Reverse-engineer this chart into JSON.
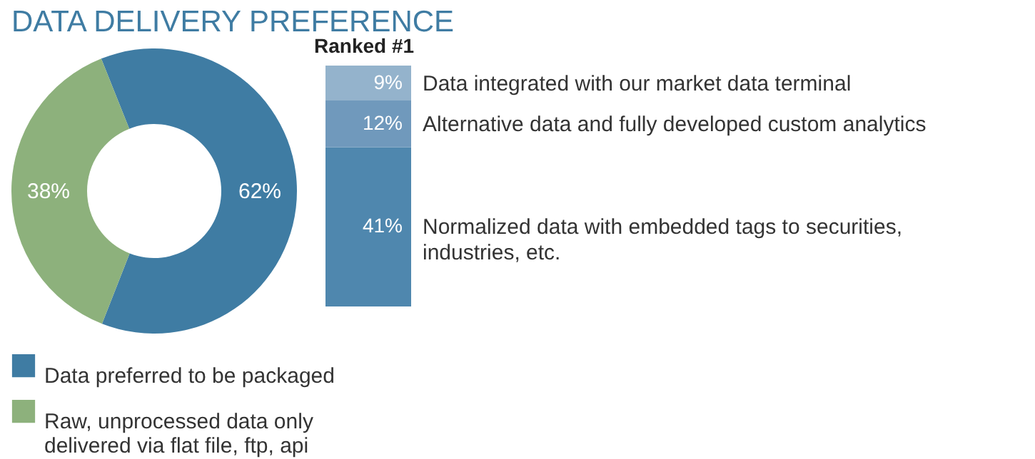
{
  "chart_data": [
    {
      "type": "donut",
      "title": "DATA DELIVERY PREFERENCE",
      "categories": [
        "Data preferred to be packaged",
        "Raw, unprocessed data only delivered via flat file, ftp, api"
      ],
      "values": [
        62,
        38
      ],
      "colors": [
        "#3f7ca3",
        "#8db17c"
      ],
      "value_labels": [
        "62%",
        "38%"
      ],
      "legend": "bottom"
    },
    {
      "type": "bar",
      "title": "Ranked #1",
      "stacked": true,
      "categories": [
        null
      ],
      "series": [
        {
          "name": "Normalized data with embedded tags to securities, industries, etc.",
          "color": "#4f87ae",
          "values": [
            41
          ],
          "value_labels": [
            "41%"
          ]
        },
        {
          "name": "Alternative data and fully developed custom analytics",
          "color": "#7099bc",
          "values": [
            12
          ],
          "value_labels": [
            "12%"
          ]
        },
        {
          "name": "Data integrated with our market data terminal",
          "color": "#94b3cc",
          "values": [
            9
          ],
          "value_labels": [
            "9%"
          ]
        }
      ]
    }
  ]
}
